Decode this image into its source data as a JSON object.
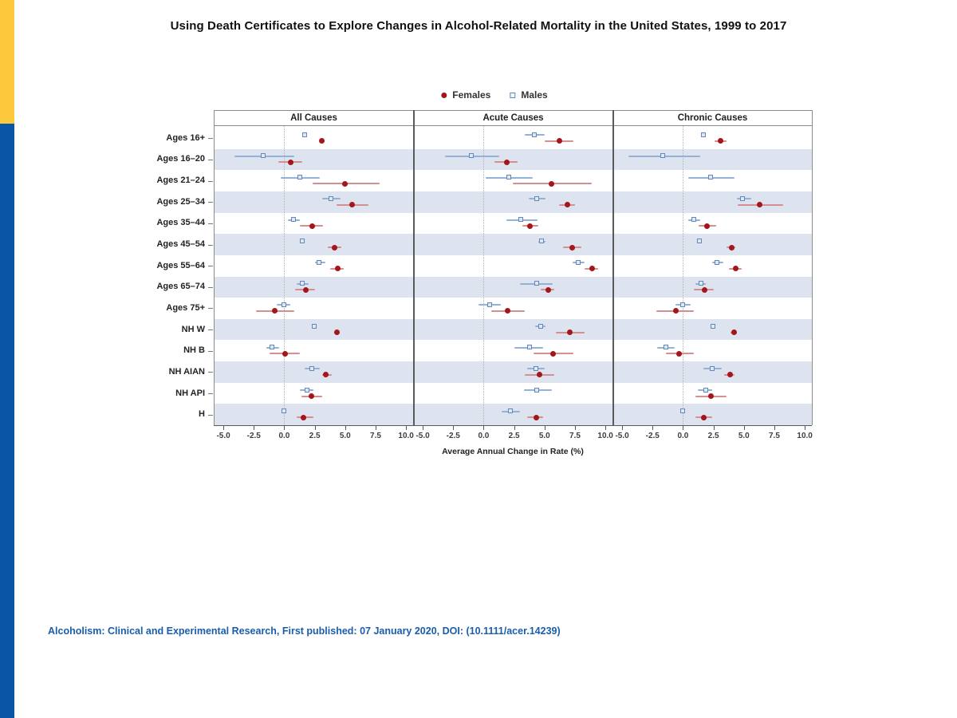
{
  "page": {
    "title": "Using Death Certificates to Explore Changes in Alcohol-Related Mortality in the United States, 1999 to 2017",
    "footer": "Alcoholism: Clinical and Experimental Research, First published: 07 January 2020, DOI: (10.1111/acer.14239)"
  },
  "legend": {
    "female_label": "Females",
    "male_label": "Males"
  },
  "colors": {
    "accent_yellow": "#fcc93c",
    "accent_blue": "#0b56a4",
    "stripe": "#dde4ef",
    "female_point": "#a4161c",
    "female_ci": "#d29090",
    "male_border": "#6288ba",
    "male_fill": "#dfe8f3",
    "male_ci": "#94b1d8",
    "footer_blue": "#1a5dab"
  },
  "chart_data": {
    "type": "scatter",
    "subtype": "forest-dot-plot-with-error-bars",
    "panels": [
      "All Causes",
      "Acute Causes",
      "Chronic Causes"
    ],
    "categories": [
      "Ages 16+",
      "Ages 16–20",
      "Ages 21–24",
      "Ages 25–34",
      "Ages 35–44",
      "Ages 45–54",
      "Ages 55–64",
      "Ages 65–74",
      "Ages 75+",
      "NH W",
      "NH B",
      "NH AIAN",
      "NH API",
      "H"
    ],
    "xlabel": "Average Annual Change in Rate (%)",
    "xticks": [
      -5.0,
      -2.5,
      0.0,
      2.5,
      5.0,
      7.5,
      10.0
    ],
    "xtick_labels": [
      "-5.0",
      "-2.5",
      "0.0",
      "2.5",
      "5.0",
      "7.5",
      "10.0"
    ],
    "xlim": [
      -5.79,
      10.58
    ],
    "grid": "zero-reference-dotted-line-only",
    "legend_position": "top-center",
    "series": [
      {
        "name": "Males",
        "marker": "open-square",
        "values_by_panel": [
          [
            [
              1.7,
              1.5,
              1.9
            ],
            [
              -1.7,
              -4.1,
              0.8
            ],
            [
              1.3,
              -0.3,
              2.9
            ],
            [
              3.9,
              3.1,
              4.6
            ],
            [
              0.8,
              0.3,
              1.3
            ],
            [
              1.5,
              1.4,
              1.7
            ],
            [
              2.9,
              2.5,
              3.4
            ],
            [
              1.5,
              1.0,
              2.0
            ],
            [
              0.0,
              -0.6,
              0.5
            ],
            [
              2.5,
              2.4,
              2.6
            ],
            [
              -1.0,
              -1.5,
              -0.4
            ],
            [
              2.3,
              1.7,
              2.9
            ],
            [
              1.9,
              1.3,
              2.4
            ],
            [
              0.0,
              -0.2,
              0.2
            ]
          ],
          [
            [
              4.2,
              3.4,
              5.0
            ],
            [
              -1.0,
              -3.2,
              1.3
            ],
            [
              2.1,
              0.2,
              4.0
            ],
            [
              4.4,
              3.7,
              5.1
            ],
            [
              3.1,
              1.9,
              4.4
            ],
            [
              4.8,
              4.5,
              5.1
            ],
            [
              7.8,
              7.3,
              8.3
            ],
            [
              4.4,
              3.0,
              5.7
            ],
            [
              0.5,
              -0.4,
              1.4
            ],
            [
              4.7,
              4.2,
              5.1
            ],
            [
              3.8,
              2.5,
              4.9
            ],
            [
              4.3,
              3.6,
              5.0
            ],
            [
              4.4,
              3.3,
              5.6
            ],
            [
              2.2,
              1.5,
              3.0
            ]
          ],
          [
            [
              1.7,
              1.6,
              1.8
            ],
            [
              -1.6,
              -4.5,
              1.4
            ],
            [
              2.3,
              0.4,
              4.2
            ],
            [
              4.9,
              4.4,
              5.6
            ],
            [
              0.9,
              0.4,
              1.4
            ],
            [
              1.4,
              1.3,
              1.5
            ],
            [
              2.8,
              2.4,
              3.3
            ],
            [
              1.5,
              1.0,
              1.9
            ],
            [
              0.0,
              -0.6,
              0.6
            ],
            [
              2.5,
              2.4,
              2.6
            ],
            [
              -1.4,
              -2.1,
              -0.7
            ],
            [
              2.4,
              1.7,
              3.2
            ],
            [
              1.9,
              1.2,
              2.4
            ],
            [
              0.0,
              -0.2,
              0.2
            ]
          ]
        ]
      },
      {
        "name": "Females",
        "marker": "filled-circle",
        "values_by_panel": [
          [
            [
              3.1,
              2.9,
              3.3
            ],
            [
              0.5,
              -0.5,
              1.5
            ],
            [
              5.0,
              2.3,
              7.8
            ],
            [
              5.6,
              4.3,
              6.9
            ],
            [
              2.3,
              1.3,
              3.2
            ],
            [
              4.1,
              3.6,
              4.7
            ],
            [
              4.4,
              3.8,
              4.9
            ],
            [
              1.8,
              0.9,
              2.5
            ],
            [
              -0.8,
              -2.3,
              0.8
            ],
            [
              4.3,
              4.1,
              4.5
            ],
            [
              0.1,
              -1.2,
              1.3
            ],
            [
              3.4,
              3.1,
              3.9
            ],
            [
              2.2,
              1.4,
              3.1
            ],
            [
              1.6,
              1.0,
              2.4
            ]
          ],
          [
            [
              6.2,
              5.0,
              7.4
            ],
            [
              1.9,
              0.9,
              2.8
            ],
            [
              5.6,
              2.4,
              8.9
            ],
            [
              6.9,
              6.2,
              7.5
            ],
            [
              3.8,
              3.2,
              4.5
            ],
            [
              7.3,
              6.5,
              8.0
            ],
            [
              8.9,
              8.3,
              9.4
            ],
            [
              5.3,
              4.7,
              5.8
            ],
            [
              2.0,
              0.6,
              3.4
            ],
            [
              7.1,
              5.9,
              8.3
            ],
            [
              5.7,
              4.1,
              7.4
            ],
            [
              4.6,
              3.4,
              5.8
            ],
            null,
            [
              4.3,
              3.6,
              4.9
            ]
          ],
          [
            [
              3.1,
              2.6,
              3.6
            ],
            null,
            null,
            [
              6.3,
              4.5,
              8.2
            ],
            [
              2.0,
              1.3,
              2.7
            ],
            [
              4.0,
              3.6,
              4.3
            ],
            [
              4.3,
              3.8,
              4.8
            ],
            [
              1.8,
              0.9,
              2.5
            ],
            [
              -0.6,
              -2.2,
              0.9
            ],
            [
              4.2,
              3.9,
              4.4
            ],
            [
              -0.3,
              -1.4,
              0.9
            ],
            [
              3.9,
              3.4,
              4.2
            ],
            [
              2.3,
              1.0,
              3.6
            ],
            [
              1.7,
              1.0,
              2.4
            ]
          ]
        ]
      }
    ]
  }
}
